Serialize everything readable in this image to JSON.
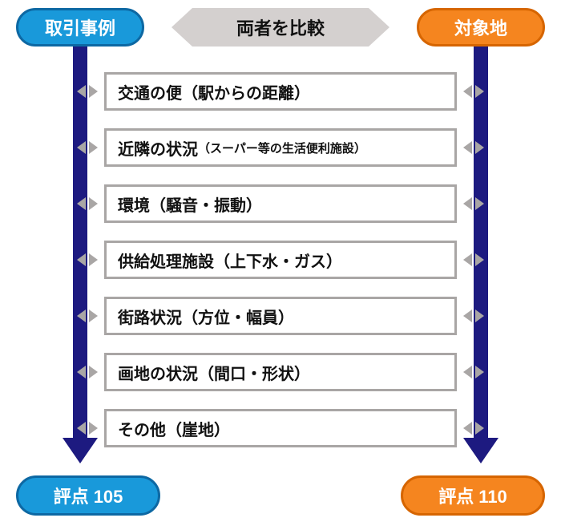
{
  "diagram": {
    "type": "flowchart",
    "background_color": "#ffffff",
    "left": {
      "title": "取引事例",
      "pill_bg": "#1999da",
      "pill_border": "#0d68a3",
      "arrow_color": "#1d1a80",
      "score_label": "評点 105",
      "score_bg": "#1999da",
      "score_border": "#0d68a3"
    },
    "right": {
      "title": "対象地",
      "pill_bg": "#f5851f",
      "pill_border": "#d66500",
      "arrow_color": "#1d1a80",
      "score_label": "評点 110",
      "score_bg": "#f5851f",
      "score_border": "#d66500"
    },
    "center": {
      "compare_label": "両者を比較",
      "compare_bg": "#d4d0cf",
      "compare_text": "#111111"
    },
    "criteria_box": {
      "border_color": "#a9a6a5",
      "text_color": "#111111",
      "mini_arrow_color": "#a9a6a5"
    },
    "criteria": [
      {
        "label": "交通の便（駅からの距離）",
        "sub": ""
      },
      {
        "label": "近隣の状況",
        "sub": "（スーパー等の生活便利施設）"
      },
      {
        "label": "環境（騒音・振動）",
        "sub": ""
      },
      {
        "label": "供給処理施設（上下水・ガス）",
        "sub": ""
      },
      {
        "label": "街路状況（方位・幅員）",
        "sub": ""
      },
      {
        "label": "画地の状況（間口・形状）",
        "sub": ""
      },
      {
        "label": "その他（崖地）",
        "sub": ""
      }
    ]
  }
}
